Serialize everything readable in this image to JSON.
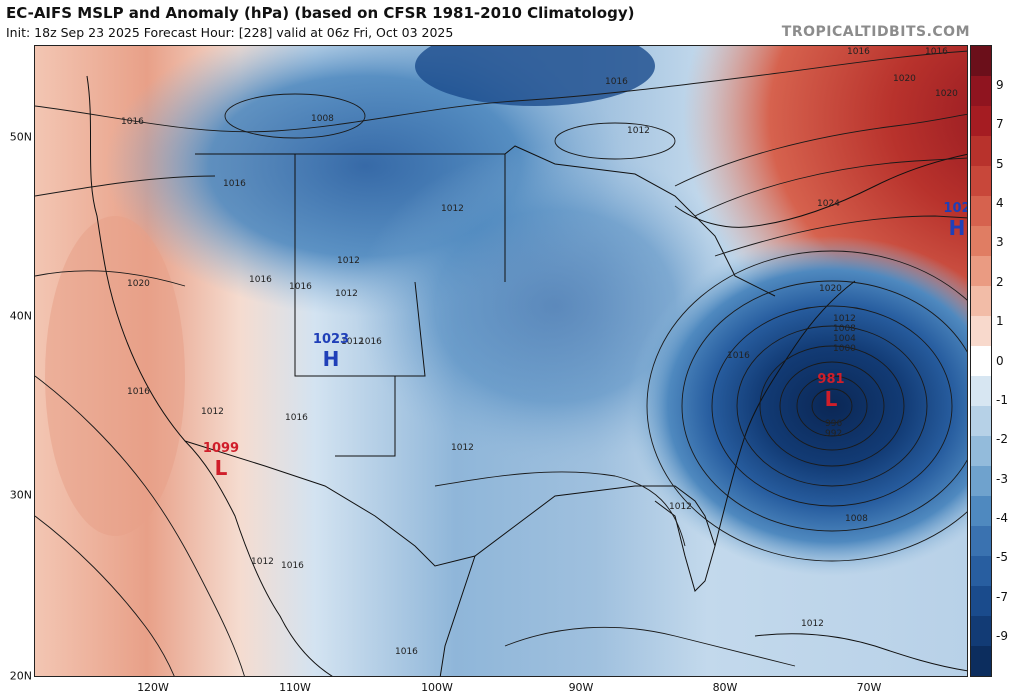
{
  "header": {
    "title": "EC-AIFS MSLP and Anomaly (hPa) (based on CFSR 1981-2010 Climatology)",
    "subtitle": "Init: 18z Sep 23 2025   Forecast Hour: [228]   valid at 06z Fri, Oct 03 2025",
    "brand": "TROPICALTIDBITS.COM"
  },
  "axes": {
    "lat_labels": [
      "50N",
      "40N",
      "30N",
      "20N"
    ],
    "lon_labels": [
      "120W",
      "110W",
      "100W",
      "90W",
      "80W",
      "70W"
    ]
  },
  "colorbar": {
    "labels": [
      "9",
      "7",
      "5",
      "4",
      "3",
      "2",
      "1",
      "0",
      "-1",
      "-2",
      "-3",
      "-4",
      "-5",
      "-7",
      "-9"
    ],
    "colors": [
      "#6b0f1a",
      "#8f141f",
      "#a51c22",
      "#b8322c",
      "#c8473a",
      "#d6624e",
      "#e07d63",
      "#ea9b82",
      "#f2bca7",
      "#f8d9cc",
      "#ffffff",
      "#d7e6f2",
      "#b6d1e7",
      "#93bbdb",
      "#6fa2cd",
      "#4f89bf",
      "#3a72b0",
      "#285ea0",
      "#1a4b8c",
      "#123b75",
      "#0c2d5e"
    ]
  },
  "pressure_centers": [
    {
      "value": "981",
      "letter": "L",
      "kind": "low"
    },
    {
      "value": "1023",
      "letter": "H",
      "kind": "high"
    },
    {
      "value": "1099",
      "letter": "L",
      "kind": "low"
    },
    {
      "value": "102",
      "letter": "H",
      "kind": "high"
    }
  ],
  "isobar_labels": [
    "1016",
    "1020",
    "1008",
    "1012",
    "1016",
    "1012",
    "1016",
    "1016",
    "1020",
    "1016",
    "1012",
    "1016",
    "1012",
    "1012",
    "1008",
    "1012",
    "1016",
    "1020",
    "1016",
    "1024",
    "1020",
    "1016",
    "1012",
    "1016",
    "1012",
    "1012",
    "1008",
    "1004",
    "1000",
    "996",
    "992",
    "1012",
    "1016",
    "1016",
    "1012",
    "1016"
  ]
}
